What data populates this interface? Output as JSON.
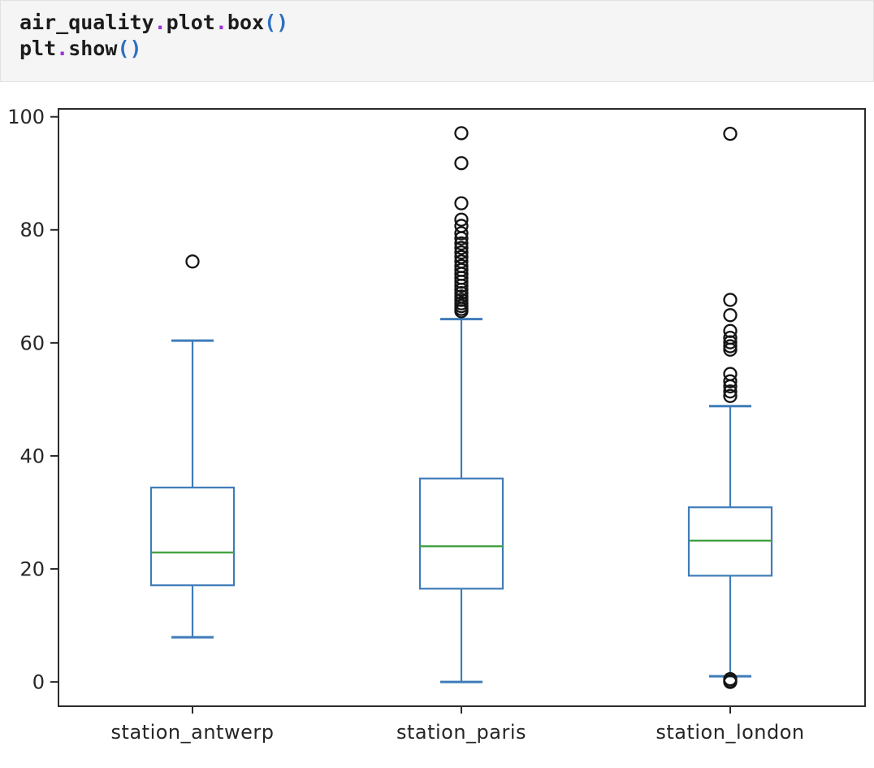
{
  "code_cell": {
    "language": "python",
    "background": "#f5f5f5",
    "border": "#e2e2e2",
    "token_colors": {
      "name": "#1c1c1c",
      "operator": "#9d2fd6",
      "bracket": "#2d6fc1"
    },
    "lines": [
      [
        {
          "text": "air_quality",
          "type": "name"
        },
        {
          "text": ".",
          "type": "operator"
        },
        {
          "text": "plot",
          "type": "name"
        },
        {
          "text": ".",
          "type": "operator"
        },
        {
          "text": "box",
          "type": "name"
        },
        {
          "text": "()",
          "type": "bracket"
        }
      ],
      [
        {
          "text": "plt",
          "type": "name"
        },
        {
          "text": ".",
          "type": "operator"
        },
        {
          "text": "show",
          "type": "name"
        },
        {
          "text": "()",
          "type": "bracket"
        }
      ]
    ]
  },
  "chart_data": {
    "type": "box",
    "title": "",
    "xlabel": "",
    "ylabel": "",
    "grid": false,
    "legend": null,
    "categories": [
      "station_antwerp",
      "station_paris",
      "station_london"
    ],
    "yticks": [
      0,
      20,
      40,
      60,
      80,
      100
    ],
    "ylim": [
      -4.3,
      101.4
    ],
    "series": [
      {
        "name": "station_antwerp",
        "whislo": 7.9,
        "q1": 17.1,
        "med": 22.9,
        "q3": 34.4,
        "whishi": 60.4,
        "outliers": [
          74.4
        ]
      },
      {
        "name": "station_paris",
        "whislo": 0.0,
        "q1": 16.5,
        "med": 24.0,
        "q3": 36.0,
        "whishi": 64.2,
        "outliers": [
          97.1,
          91.8,
          84.7,
          81.8,
          80.7,
          79.4,
          78.5,
          77.6,
          76.8,
          76.0,
          75.2,
          74.4,
          73.6,
          72.9,
          72.2,
          71.5,
          70.8,
          70.1,
          69.4,
          68.8,
          68.2,
          67.6,
          67.0,
          66.5,
          66.0,
          65.6
        ]
      },
      {
        "name": "station_london",
        "whislo": 1.0,
        "q1": 18.8,
        "med": 25.0,
        "q3": 30.9,
        "whishi": 48.8,
        "outliers": [
          97.0,
          67.6,
          64.9,
          62.1,
          60.9,
          60.1,
          59.4,
          58.8,
          54.5,
          53.2,
          52.3,
          51.4,
          50.6,
          0.5,
          0.15,
          0.0
        ]
      }
    ],
    "colors": {
      "box": "#3f7cb9",
      "whisker": "#3f7cb9",
      "cap": "#3f7cb9",
      "median": "#44a144",
      "outlier": "#141414",
      "frame": "#2b2b2b",
      "tick_label": "#262626",
      "plot_bg": "#ffffff"
    }
  }
}
